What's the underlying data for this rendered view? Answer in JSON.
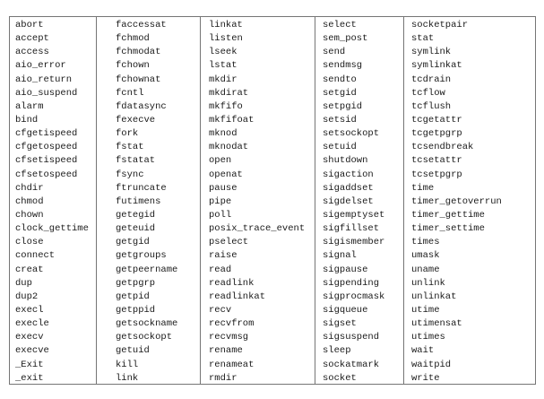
{
  "colors": {
    "background": "#ffffff",
    "table_border": "#757575",
    "text": "#1a1a1a"
  },
  "table": {
    "description": "POSIX function names table, 5 columns",
    "columns": [
      {
        "items": [
          "abort",
          "accept",
          "access",
          "aio_error",
          "aio_return",
          "aio_suspend",
          "alarm",
          "bind",
          "cfgetispeed",
          "cfgetospeed",
          "cfsetispeed",
          "cfsetospeed",
          "chdir",
          "chmod",
          "chown",
          "clock_gettime",
          "close",
          "connect",
          "creat",
          "dup",
          "dup2",
          "execl",
          "execle",
          "execv",
          "execve",
          "_Exit",
          "_exit"
        ]
      },
      {
        "items": [
          "faccessat",
          "fchmod",
          "fchmodat",
          "fchown",
          "fchownat",
          "fcntl",
          "fdatasync",
          "fexecve",
          "fork",
          "fstat",
          "fstatat",
          "fsync",
          "ftruncate",
          "futimens",
          "getegid",
          "geteuid",
          "getgid",
          "getgroups",
          "getpeername",
          "getpgrp",
          "getpid",
          "getppid",
          "getsockname",
          "getsockopt",
          "getuid",
          "kill",
          "link"
        ]
      },
      {
        "items": [
          "linkat",
          "listen",
          "lseek",
          "lstat",
          "mkdir",
          "mkdirat",
          "mkfifo",
          "mkfifoat",
          "mknod",
          "mknodat",
          "open",
          "openat",
          "pause",
          "pipe",
          "poll",
          "posix_trace_event",
          "pselect",
          "raise",
          "read",
          "readlink",
          "readlinkat",
          "recv",
          "recvfrom",
          "recvmsg",
          "rename",
          "renameat",
          "rmdir"
        ]
      },
      {
        "items": [
          "select",
          "sem_post",
          "send",
          "sendmsg",
          "sendto",
          "setgid",
          "setpgid",
          "setsid",
          "setsockopt",
          "setuid",
          "shutdown",
          "sigaction",
          "sigaddset",
          "sigdelset",
          "sigemptyset",
          "sigfillset",
          "sigismember",
          "signal",
          "sigpause",
          "sigpending",
          "sigprocmask",
          "sigqueue",
          "sigset",
          "sigsuspend",
          "sleep",
          "sockatmark",
          "socket"
        ]
      },
      {
        "items": [
          "socketpair",
          "stat",
          "symlink",
          "symlinkat",
          "tcdrain",
          "tcflow",
          "tcflush",
          "tcgetattr",
          "tcgetpgrp",
          "tcsendbreak",
          "tcsetattr",
          "tcsetpgrp",
          "time",
          "timer_getoverrun",
          "timer_gettime",
          "timer_settime",
          "times",
          "umask",
          "uname",
          "unlink",
          "unlinkat",
          "utime",
          "utimensat",
          "utimes",
          "wait",
          "waitpid",
          "write"
        ]
      }
    ]
  }
}
